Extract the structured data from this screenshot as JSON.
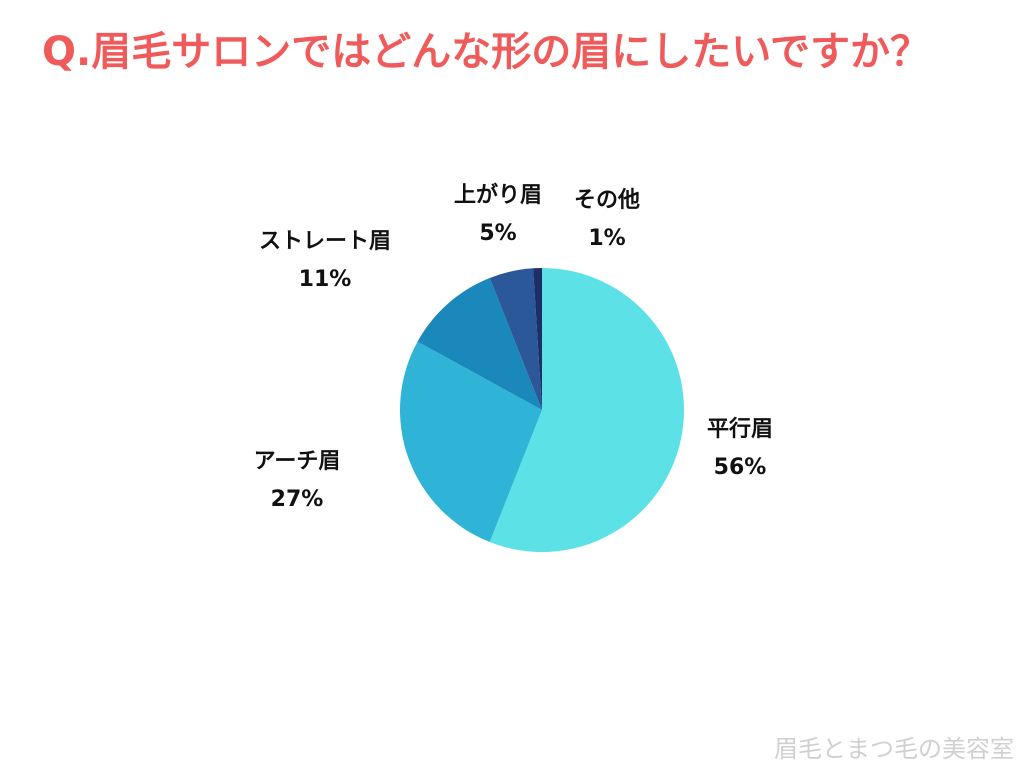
{
  "chart_data": {
    "type": "pie",
    "title": "Q.眉毛サロンではどんな形の眉にしたいですか？",
    "categories": [
      "平行眉",
      "アーチ眉",
      "ストレート眉",
      "上がり眉",
      "その他"
    ],
    "values": [
      56,
      27,
      11,
      5,
      1
    ],
    "value_labels": [
      "56%",
      "27%",
      "11%",
      "5%",
      "1%"
    ],
    "colors": [
      "#5ce1e6",
      "#2fb3d7",
      "#1a88ba",
      "#2a5899",
      "#1d2f66"
    ],
    "start_angle": 0,
    "direction": "clockwise"
  },
  "footer": {
    "watermark": "眉毛とまつ毛の美容室"
  }
}
